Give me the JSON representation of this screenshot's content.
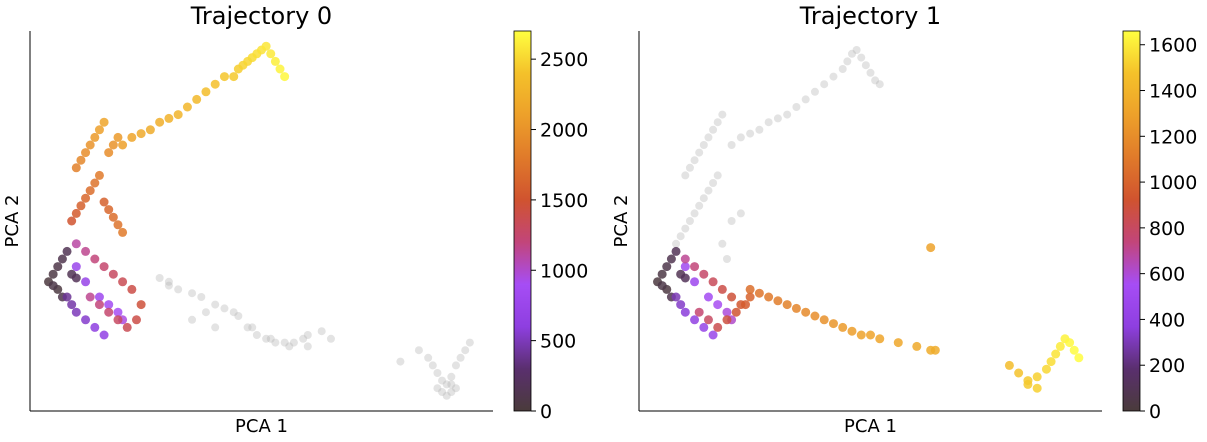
{
  "chart_data": [
    {
      "type": "scatter",
      "title": "Trajectory 0",
      "xlabel": "PCA 1",
      "ylabel": "PCA 2",
      "xlim": [
        0,
        100
      ],
      "ylim": [
        0,
        100
      ],
      "grid": false,
      "background_color": "#b0b0b0",
      "colorbar": {
        "cmap": [
          "#4a3b3b",
          "#5a2f6e",
          "#8e3fe0",
          "#a64df5",
          "#c2457a",
          "#d0532f",
          "#e07a2a",
          "#eda02a",
          "#f4c12a",
          "#ffff40"
        ],
        "range": [
          0,
          2700
        ],
        "ticks": [
          0,
          500,
          1000,
          1500,
          2000,
          2500
        ],
        "tick_labels": [
          "0",
          "500",
          "1000",
          "1500",
          "2000",
          "2500"
        ]
      },
      "background_points": [
        [
          28,
          35
        ],
        [
          30,
          34
        ],
        [
          32,
          32
        ],
        [
          35,
          31
        ],
        [
          37,
          30
        ],
        [
          40,
          28
        ],
        [
          42,
          27
        ],
        [
          44,
          26
        ],
        [
          45,
          25
        ],
        [
          47,
          22
        ],
        [
          49,
          20
        ],
        [
          51,
          19
        ],
        [
          53,
          18
        ],
        [
          55,
          18
        ],
        [
          57,
          18
        ],
        [
          59,
          19
        ],
        [
          60,
          20
        ],
        [
          63,
          21
        ],
        [
          40,
          22
        ],
        [
          35,
          24
        ],
        [
          30,
          33
        ],
        [
          38,
          26
        ],
        [
          48,
          22
        ],
        [
          52,
          19
        ],
        [
          56,
          17
        ],
        [
          60,
          17
        ],
        [
          65,
          19
        ],
        [
          80,
          13
        ],
        [
          84,
          16
        ],
        [
          86,
          14
        ],
        [
          87,
          12
        ],
        [
          88,
          10
        ],
        [
          89,
          8
        ],
        [
          90,
          7
        ],
        [
          91,
          9
        ],
        [
          92,
          12
        ],
        [
          93,
          14
        ],
        [
          94,
          16
        ],
        [
          95,
          18
        ],
        [
          88,
          6
        ],
        [
          89,
          5
        ],
        [
          90,
          4
        ],
        [
          91,
          5
        ],
        [
          92,
          6
        ],
        [
          91,
          7
        ]
      ],
      "series": [
        {
          "x": [
            4,
            5,
            6,
            7,
            8,
            6,
            5,
            7,
            9,
            10
          ],
          "y": [
            34,
            36,
            38,
            40,
            42,
            32,
            33,
            30,
            36,
            35
          ],
          "c": [
            30,
            60,
            90,
            120,
            150,
            40,
            80,
            100,
            140,
            170
          ]
        },
        {
          "x": [
            8,
            9,
            10,
            12,
            14,
            16,
            12,
            10,
            15,
            17,
            19,
            20
          ],
          "y": [
            30,
            28,
            26,
            24,
            22,
            20,
            34,
            38,
            30,
            28,
            26,
            24
          ],
          "c": [
            400,
            450,
            500,
            550,
            600,
            650,
            700,
            750,
            800,
            850,
            900,
            950
          ]
        },
        {
          "x": [
            10,
            12,
            14,
            16,
            18,
            20,
            22,
            13,
            15,
            17,
            19,
            21,
            23,
            24
          ],
          "y": [
            44,
            42,
            40,
            38,
            36,
            34,
            32,
            30,
            28,
            26,
            24,
            22,
            24,
            28
          ],
          "c": [
            1100,
            1150,
            1200,
            1250,
            1300,
            1350,
            1400,
            1150,
            1200,
            1250,
            1300,
            1350,
            1400,
            1450
          ]
        },
        {
          "x": [
            9,
            10,
            11,
            12,
            13,
            14,
            15,
            16,
            17,
            18,
            19,
            20
          ],
          "y": [
            50,
            52,
            54,
            56,
            58,
            60,
            62,
            55,
            53,
            51,
            49,
            47
          ],
          "c": [
            1500,
            1550,
            1600,
            1650,
            1700,
            1750,
            1800,
            1600,
            1650,
            1700,
            1750,
            1800
          ]
        },
        {
          "x": [
            10,
            11,
            12,
            13,
            14,
            15,
            16,
            17,
            18,
            19
          ],
          "y": [
            64,
            66,
            68,
            70,
            72,
            74,
            76,
            68,
            70,
            72
          ],
          "c": [
            1850,
            1900,
            1950,
            2000,
            2050,
            2100,
            2150,
            1950,
            2000,
            2050
          ]
        },
        {
          "x": [
            20,
            22,
            24,
            26,
            28,
            30,
            32,
            34,
            36,
            38,
            40,
            42
          ],
          "y": [
            70,
            72,
            73,
            74,
            76,
            77,
            78,
            80,
            82,
            84,
            86,
            88
          ],
          "c": [
            2100,
            2150,
            2180,
            2200,
            2230,
            2250,
            2280,
            2300,
            2330,
            2360,
            2390,
            2420
          ]
        },
        {
          "x": [
            44,
            45,
            46,
            47,
            48,
            49,
            50,
            51,
            52,
            53,
            54,
            55
          ],
          "y": [
            88,
            90,
            91,
            92,
            93,
            94,
            95,
            96,
            94,
            92,
            90,
            88
          ],
          "c": [
            2440,
            2460,
            2480,
            2500,
            2520,
            2540,
            2560,
            2580,
            2600,
            2620,
            2640,
            2660
          ]
        }
      ]
    },
    {
      "type": "scatter",
      "title": "Trajectory 1",
      "xlabel": "PCA 1",
      "ylabel": "PCA 2",
      "xlim": [
        0,
        100
      ],
      "ylim": [
        0,
        100
      ],
      "grid": false,
      "background_color": "#b0b0b0",
      "colorbar": {
        "cmap": [
          "#4a3b3b",
          "#5a2f6e",
          "#8e3fe0",
          "#a64df5",
          "#c2457a",
          "#d0532f",
          "#e07a2a",
          "#eda02a",
          "#f4c12a",
          "#ffff40"
        ],
        "range": [
          0,
          1660
        ],
        "ticks": [
          0,
          200,
          400,
          600,
          800,
          1000,
          1200,
          1400,
          1600
        ],
        "tick_labels": [
          "0",
          "200",
          "400",
          "600",
          "800",
          "1000",
          "1200",
          "1400",
          "1600"
        ]
      },
      "background_points": [
        [
          8,
          44
        ],
        [
          9,
          46
        ],
        [
          10,
          48
        ],
        [
          11,
          50
        ],
        [
          12,
          52
        ],
        [
          13,
          54
        ],
        [
          14,
          56
        ],
        [
          15,
          58
        ],
        [
          16,
          60
        ],
        [
          17,
          62
        ],
        [
          10,
          62
        ],
        [
          11,
          64
        ],
        [
          12,
          66
        ],
        [
          13,
          68
        ],
        [
          14,
          70
        ],
        [
          15,
          72
        ],
        [
          16,
          74
        ],
        [
          17,
          76
        ],
        [
          18,
          78
        ],
        [
          20,
          70
        ],
        [
          22,
          72
        ],
        [
          24,
          73
        ],
        [
          26,
          74
        ],
        [
          28,
          76
        ],
        [
          30,
          77
        ],
        [
          32,
          78
        ],
        [
          34,
          80
        ],
        [
          36,
          82
        ],
        [
          38,
          84
        ],
        [
          40,
          86
        ],
        [
          42,
          88
        ],
        [
          44,
          90
        ],
        [
          45,
          92
        ],
        [
          46,
          94
        ],
        [
          47,
          95
        ],
        [
          48,
          93
        ],
        [
          49,
          91
        ],
        [
          50,
          89
        ],
        [
          51,
          87
        ],
        [
          52,
          86
        ],
        [
          20,
          50
        ],
        [
          22,
          52
        ],
        [
          18,
          44
        ],
        [
          19,
          40
        ]
      ],
      "series": [
        {
          "x": [
            4,
            5,
            6,
            7,
            8,
            6,
            5,
            7,
            9,
            10
          ],
          "y": [
            34,
            36,
            38,
            40,
            42,
            32,
            33,
            30,
            36,
            35
          ],
          "c": [
            20,
            40,
            60,
            80,
            100,
            30,
            50,
            70,
            90,
            110
          ]
        },
        {
          "x": [
            8,
            9,
            10,
            12,
            14,
            16,
            12,
            10,
            15,
            17,
            19,
            20
          ],
          "y": [
            30,
            28,
            26,
            24,
            22,
            20,
            34,
            38,
            30,
            28,
            26,
            24
          ],
          "c": [
            300,
            330,
            360,
            390,
            420,
            450,
            480,
            500,
            530,
            560,
            590,
            620
          ]
        },
        {
          "x": [
            10,
            12,
            14,
            16,
            18,
            20,
            22,
            13,
            15,
            17,
            19,
            21,
            23,
            24
          ],
          "y": [
            40,
            38,
            36,
            34,
            32,
            30,
            28,
            26,
            24,
            22,
            24,
            26,
            28,
            30
          ],
          "c": [
            700,
            740,
            780,
            820,
            860,
            900,
            940,
            760,
            800,
            840,
            880,
            920,
            960,
            1000
          ]
        },
        {
          "x": [
            24,
            26,
            28,
            30,
            32,
            34,
            36
          ],
          "y": [
            32,
            31,
            30,
            29,
            28,
            27,
            26
          ],
          "c": [
            1050,
            1080,
            1100,
            1120,
            1140,
            1160,
            1180
          ]
        },
        {
          "x": [
            38,
            40,
            42,
            44,
            46,
            48,
            50,
            52,
            56,
            60,
            64
          ],
          "y": [
            25,
            24,
            23,
            22,
            21,
            20,
            20,
            19,
            18,
            17,
            16
          ],
          "c": [
            1200,
            1220,
            1240,
            1260,
            1280,
            1300,
            1310,
            1320,
            1330,
            1340,
            1350
          ]
        },
        {
          "x": [
            80,
            82,
            84,
            86,
            88,
            89,
            90,
            91,
            92,
            93,
            94,
            95,
            84,
            86
          ],
          "y": [
            12,
            10,
            8,
            9,
            11,
            13,
            15,
            17,
            19,
            18,
            16,
            14,
            7,
            6
          ],
          "c": [
            1450,
            1480,
            1500,
            1520,
            1540,
            1560,
            1580,
            1600,
            1620,
            1640,
            1650,
            1655,
            1500,
            1520
          ]
        },
        {
          "x": [
            63
          ],
          "y": [
            43
          ],
          "c": [
            1300
          ]
        },
        {
          "x": [
            63
          ],
          "y": [
            16
          ],
          "c": [
            1350
          ]
        }
      ]
    }
  ]
}
